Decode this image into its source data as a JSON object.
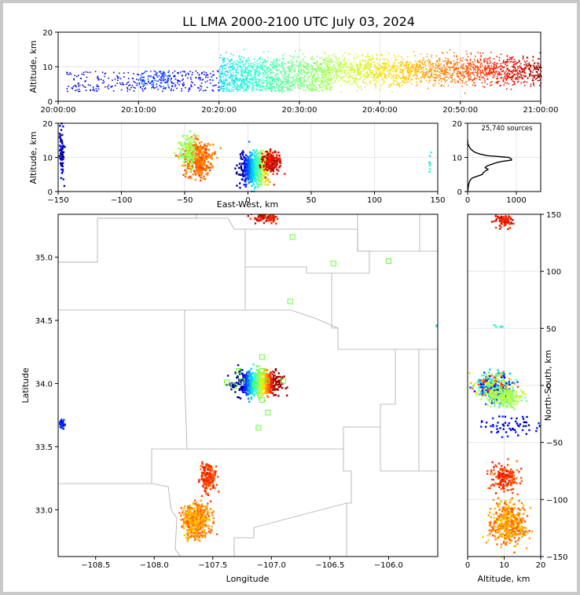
{
  "figure": {
    "title": "LL LMA 2000-2100 UTC July 03, 2024",
    "source_count_label": "25,740 sources"
  },
  "colors": {
    "timeline": [
      "#00008b",
      "#0000ff",
      "#0064ff",
      "#00c8ff",
      "#28ffd0",
      "#78ff80",
      "#c8ff30",
      "#ffd800",
      "#ff8000",
      "#ff2000",
      "#a00000"
    ],
    "county_lines": "#aaaaaa",
    "stations": "#66ff33"
  },
  "chart_data": [
    {
      "id": "altitude-time",
      "type": "scatter",
      "title": "LL LMA 2000-2100 UTC July 03, 2024",
      "xlabel": "",
      "ylabel": "Altitude, km",
      "xlim": [
        "20:00:00",
        "21:00:00"
      ],
      "ylim": [
        0,
        20
      ],
      "xticks": [
        "20:00:00",
        "20:10:00",
        "20:20:00",
        "20:30:00",
        "20:40:00",
        "20:50:00",
        "21:00:00"
      ],
      "yticks": [
        0,
        10,
        20
      ],
      "grid": true,
      "clusters": [
        {
          "t0": 1,
          "t1": 20,
          "zlo": 3,
          "zhi": 9,
          "n": 320,
          "z": 0.06
        },
        {
          "t0": 10,
          "t1": 14,
          "zlo": 4,
          "zhi": 9,
          "n": 80,
          "z": 0.15
        },
        {
          "t0": 20,
          "t1": 60,
          "zlo": 3,
          "zhi": 16,
          "n": 2600,
          "z": "time"
        },
        {
          "t0": 20,
          "t1": 34,
          "zlo": 3,
          "zhi": 7,
          "n": 500,
          "z": "time"
        }
      ]
    },
    {
      "id": "altitude-east-west",
      "type": "scatter",
      "xlabel": "East-West, km",
      "ylabel": "Altitude, km",
      "xlim": [
        -150,
        150
      ],
      "ylim": [
        0,
        20
      ],
      "xticks": [
        -150,
        -100,
        -50,
        0,
        50,
        100,
        150
      ],
      "yticks": [
        0,
        10,
        20
      ],
      "grid": true
    },
    {
      "id": "altitude-histogram",
      "type": "line",
      "xlim": [
        0,
        1500
      ],
      "ylim": [
        0,
        20
      ],
      "xticks": [
        0,
        1000
      ],
      "yticks": [
        0,
        10,
        20
      ],
      "grid": true,
      "series": [
        {
          "x": [
            0,
            10,
            20,
            40,
            60,
            100,
            200,
            300,
            320,
            360,
            420,
            360,
            400,
            500,
            600,
            700,
            800,
            900,
            900,
            850,
            400,
            250,
            150,
            100,
            60,
            40,
            20,
            5,
            0
          ],
          "y": [
            0,
            1,
            2,
            3,
            3.5,
            4,
            4.5,
            5,
            5.5,
            6,
            6.5,
            7,
            7.5,
            8,
            8.5,
            8.8,
            9,
            9.2,
            9.5,
            10,
            10.5,
            11,
            11.5,
            12,
            12.5,
            13,
            13.5,
            14,
            15
          ]
        }
      ]
    },
    {
      "id": "plan-view",
      "type": "scatter",
      "xlabel": "Longitude",
      "ylabel": "Latitude",
      "xlim": [
        -108.82,
        -105.58
      ],
      "ylim": [
        32.63,
        35.34
      ],
      "xticks": [
        -108.5,
        -108.0,
        -107.5,
        -107.0,
        -106.5,
        -106.0
      ],
      "yticks": [
        33.0,
        33.5,
        34.0,
        34.5,
        35.0
      ],
      "grid": false,
      "stations": [
        [
          -106.82,
          35.16
        ],
        [
          -106.47,
          34.95
        ],
        [
          -106.0,
          34.97
        ],
        [
          -106.84,
          34.65
        ],
        [
          -107.08,
          34.21
        ],
        [
          -107.28,
          34.1
        ],
        [
          -107.08,
          34.1
        ],
        [
          -107.38,
          34.01
        ],
        [
          -107.32,
          33.98
        ],
        [
          -107.25,
          34.02
        ],
        [
          -107.14,
          33.99
        ],
        [
          -107.04,
          34.02
        ],
        [
          -106.9,
          34.02
        ],
        [
          -107.08,
          33.87
        ],
        [
          -107.03,
          33.77
        ],
        [
          -107.11,
          33.65
        ]
      ],
      "clusters": [
        {
          "lon": -107.12,
          "lat": 34.01,
          "sx": 0.09,
          "sy": 0.05,
          "n": 700,
          "z": "east"
        },
        {
          "lon": -107.55,
          "lat": 33.27,
          "sx": 0.035,
          "sy": 0.06,
          "n": 160,
          "z": 0.88
        },
        {
          "lon": -107.65,
          "lat": 32.92,
          "sx": 0.06,
          "sy": 0.07,
          "n": 420,
          "z": 0.78
        },
        {
          "lon": -107.05,
          "lat": 35.32,
          "sx": 0.05,
          "sy": 0.02,
          "n": 80,
          "z": 0.93
        },
        {
          "lon": -108.79,
          "lat": 33.68,
          "sx": 0.01,
          "sy": 0.02,
          "n": 40,
          "z": 0.12
        },
        {
          "lon": -105.6,
          "lat": 34.46,
          "sx": 0.003,
          "sy": 0.005,
          "n": 3,
          "z": 0.35
        }
      ]
    },
    {
      "id": "north-south-altitude",
      "type": "scatter",
      "xlabel": "Altitude, km",
      "ylabel": "North-South, km",
      "xlim": [
        0,
        20
      ],
      "ylim": [
        -150,
        150
      ],
      "xticks": [
        0,
        10,
        20
      ],
      "yticks": [
        -150,
        -100,
        -50,
        0,
        50,
        100,
        150
      ],
      "grid": true
    }
  ]
}
